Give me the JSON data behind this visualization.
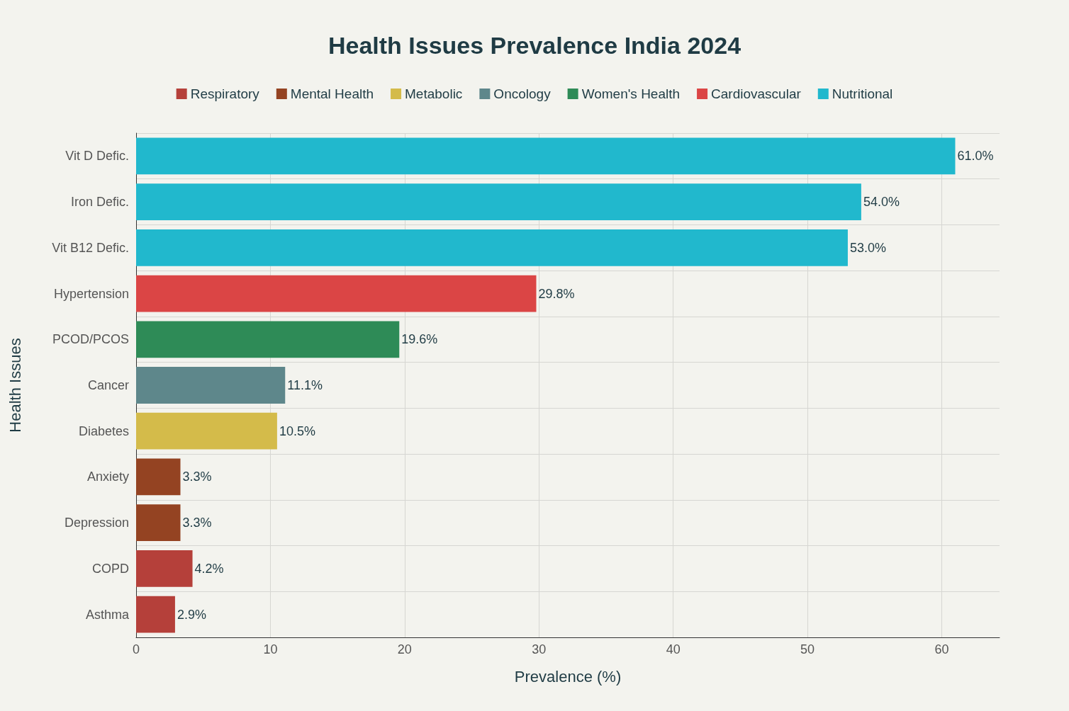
{
  "chart_data": {
    "type": "bar",
    "orientation": "horizontal",
    "stacked": true,
    "title": "Health Issues Prevalence India 2024",
    "xlabel": "Prevalence (%)",
    "ylabel": "Health Issues",
    "categories": [
      "Vit D Defic.",
      "Iron Defic.",
      "Vit B12 Defic.",
      "Hypertension",
      "PCOD/PCOS",
      "Cancer",
      "Diabetes",
      "Anxiety",
      "Depression",
      "COPD",
      "Asthma"
    ],
    "series": [
      {
        "name": "Respiratory",
        "color": "#b5403a",
        "values": [
          null,
          null,
          null,
          null,
          null,
          null,
          null,
          null,
          null,
          4.2,
          2.9
        ],
        "value_labels": [
          null,
          null,
          null,
          null,
          null,
          null,
          null,
          null,
          null,
          "4.2%",
          "2.9%"
        ]
      },
      {
        "name": "Mental Health",
        "color": "#944322",
        "values": [
          null,
          null,
          null,
          null,
          null,
          null,
          null,
          3.3,
          3.3,
          null,
          null
        ],
        "value_labels": [
          null,
          null,
          null,
          null,
          null,
          null,
          null,
          "3.3%",
          "3.3%",
          null,
          null
        ]
      },
      {
        "name": "Metabolic",
        "color": "#d4bb4a",
        "values": [
          null,
          null,
          null,
          null,
          null,
          null,
          10.5,
          null,
          null,
          null,
          null
        ],
        "value_labels": [
          null,
          null,
          null,
          null,
          null,
          null,
          "10.5%",
          null,
          null,
          null,
          null
        ]
      },
      {
        "name": "Oncology",
        "color": "#5e878b",
        "values": [
          null,
          null,
          null,
          null,
          null,
          11.1,
          null,
          null,
          null,
          null,
          null
        ],
        "value_labels": [
          null,
          null,
          null,
          null,
          null,
          "11.1%",
          null,
          null,
          null,
          null,
          null
        ]
      },
      {
        "name": "Women's Health",
        "color": "#2e8b57",
        "values": [
          null,
          null,
          null,
          null,
          19.6,
          null,
          null,
          null,
          null,
          null,
          null
        ],
        "value_labels": [
          null,
          null,
          null,
          null,
          "19.6%",
          null,
          null,
          null,
          null,
          null,
          null
        ]
      },
      {
        "name": "Cardiovascular",
        "color": "#db4545",
        "values": [
          null,
          null,
          null,
          29.8,
          null,
          null,
          null,
          null,
          null,
          null,
          null
        ],
        "value_labels": [
          null,
          null,
          null,
          "29.8%",
          null,
          null,
          null,
          null,
          null,
          null,
          null
        ]
      },
      {
        "name": "Nutritional",
        "color": "#21b8cd",
        "values": [
          61.0,
          54.0,
          53.0,
          null,
          null,
          null,
          null,
          null,
          null,
          null,
          null
        ],
        "value_labels": [
          "61.0%",
          "54.0%",
          "53.0%",
          null,
          null,
          null,
          null,
          null,
          null,
          null,
          null
        ]
      }
    ],
    "xlim": [
      0,
      64.3
    ],
    "xticks": [
      0,
      10,
      20,
      30,
      40,
      50,
      60
    ],
    "grid": true,
    "legend": "top"
  }
}
